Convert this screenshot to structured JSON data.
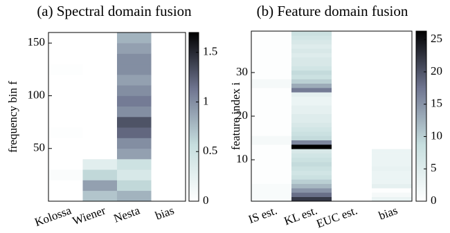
{
  "chart_data": [
    {
      "type": "heatmap",
      "title": "(a) Spectral domain fusion",
      "ylabel": "frequency bin f",
      "categories": [
        "Kolossa",
        "Wiener",
        "Nesta",
        "bias"
      ],
      "ybins": [
        0,
        10,
        20,
        30,
        40,
        50,
        60,
        70,
        80,
        90,
        100,
        110,
        120,
        130,
        140,
        150,
        160
      ],
      "values": [
        [
          0,
          0.7,
          0.8,
          0
        ],
        [
          0,
          0.9,
          0.6,
          0
        ],
        [
          0.05,
          0.6,
          0.4,
          0
        ],
        [
          0,
          0.3,
          0.5,
          0
        ],
        [
          0,
          0,
          0.9,
          0
        ],
        [
          0,
          0,
          1.0,
          0
        ],
        [
          0.02,
          0,
          1.2,
          0
        ],
        [
          0,
          0,
          1.3,
          0
        ],
        [
          0,
          0,
          1.0,
          0
        ],
        [
          0,
          0,
          1.1,
          0
        ],
        [
          0,
          0,
          1.0,
          0
        ],
        [
          0,
          0,
          0.9,
          0
        ],
        [
          0.02,
          0,
          1.0,
          0
        ],
        [
          0,
          0,
          1.0,
          0
        ],
        [
          0,
          0,
          0.9,
          0
        ],
        [
          0,
          0,
          0.8,
          0
        ]
      ],
      "ylim": [
        0,
        160
      ],
      "yticks": [
        50,
        100,
        150
      ],
      "clim": [
        0,
        1.7
      ],
      "cticks": [
        0,
        0.5,
        1,
        1.5
      ],
      "colormap": [
        "#ffffff",
        "#c6dede",
        "#6f7590",
        "#000000"
      ]
    },
    {
      "type": "heatmap",
      "title": "(b) Feature domain fusion",
      "ylabel": "feature index i",
      "categories": [
        "IS est.",
        "KL est.",
        "EUC est.",
        "bias"
      ],
      "ybins": [
        0.5,
        1.5,
        2.5,
        3.5,
        4.5,
        5.5,
        6.5,
        7.5,
        8.5,
        9.5,
        10.5,
        11.5,
        12.5,
        13.5,
        14.5,
        15.5,
        16.5,
        17.5,
        18.5,
        19.5,
        20.5,
        21.5,
        22.5,
        23.5,
        24.5,
        25.5,
        26.5,
        27.5,
        28.5,
        29.5,
        30.5,
        31.5,
        32.5,
        33.5,
        34.5,
        35.5,
        36.5,
        37.5,
        38.5,
        39.5
      ],
      "values": [
        [
          1,
          22,
          0,
          3
        ],
        [
          1,
          18,
          0,
          1.5
        ],
        [
          1,
          15,
          0,
          0.3
        ],
        [
          1,
          12,
          0,
          4
        ],
        [
          0.3,
          10,
          0,
          3
        ],
        [
          0.3,
          8,
          0,
          3
        ],
        [
          0.3,
          7,
          0,
          3
        ],
        [
          0.3,
          8,
          0,
          3.5
        ],
        [
          0.3,
          9,
          0,
          3
        ],
        [
          0.3,
          8,
          0,
          3
        ],
        [
          0.3,
          7,
          0,
          3
        ],
        [
          0.3,
          6,
          0,
          3
        ],
        [
          0.3,
          28,
          0,
          0
        ],
        [
          1.5,
          16,
          0,
          0
        ],
        [
          1.5,
          9,
          0,
          0
        ],
        [
          0.3,
          8,
          0,
          0
        ],
        [
          0.3,
          7,
          0,
          0
        ],
        [
          0.3,
          6,
          0,
          0
        ],
        [
          0.3,
          5,
          0,
          0
        ],
        [
          0.3,
          5,
          0,
          0
        ],
        [
          0.3,
          4,
          0,
          0
        ],
        [
          0.3,
          4,
          0,
          0
        ],
        [
          0.3,
          3,
          0,
          0
        ],
        [
          0.3,
          3,
          0,
          0
        ],
        [
          0.3,
          4,
          0,
          0
        ],
        [
          0.3,
          17,
          0,
          0
        ],
        [
          1.5,
          13,
          0,
          0
        ],
        [
          1.5,
          10,
          0,
          0
        ],
        [
          0.3,
          8,
          0,
          0
        ],
        [
          0.3,
          9,
          0,
          0
        ],
        [
          0.3,
          7,
          0,
          0
        ],
        [
          0.3,
          6,
          0,
          0
        ],
        [
          0.3,
          6,
          0,
          0
        ],
        [
          0.3,
          5,
          0,
          0
        ],
        [
          0.3,
          6,
          0,
          0
        ],
        [
          0.3,
          5,
          0,
          0
        ],
        [
          0.3,
          6,
          0,
          0
        ],
        [
          0.3,
          7,
          0,
          0
        ],
        [
          0.3,
          8,
          0,
          0
        ]
      ],
      "ylim": [
        0.5,
        39.5
      ],
      "yticks": [
        10,
        20,
        30
      ],
      "clim": [
        0,
        26.3
      ],
      "cticks": [
        0,
        5,
        10,
        15,
        20,
        25
      ],
      "colormap": [
        "#ffffff",
        "#c6dede",
        "#6f7590",
        "#000000"
      ]
    }
  ]
}
